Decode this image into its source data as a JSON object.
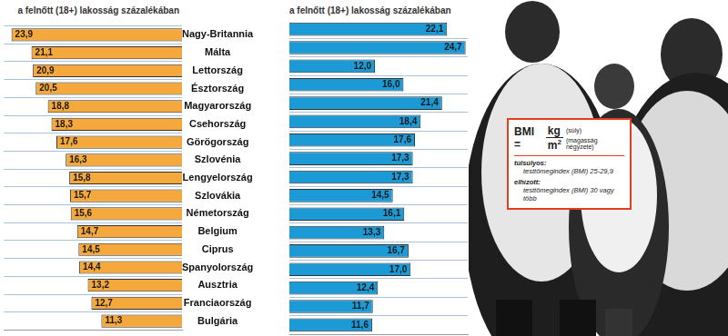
{
  "chart_data": [
    {
      "type": "bar",
      "orientation": "horizontal",
      "title": "a felnőtt (18+) lakosság százalékában",
      "categories": [
        "Nagy-Britannia",
        "Málta",
        "Lettország",
        "Észtország",
        "Magyarország",
        "Csehország",
        "Görögország",
        "Szlovénia",
        "Lengyelország",
        "Szlovákia",
        "Németország",
        "Belgium",
        "Ciprus",
        "Spanyolország",
        "Ausztria",
        "Franciaország",
        "Bulgária"
      ],
      "values": [
        23.9,
        21.1,
        20.9,
        20.5,
        18.8,
        18.3,
        17.6,
        16.3,
        15.8,
        15.7,
        15.6,
        14.7,
        14.5,
        14.4,
        13.2,
        12.7,
        11.3
      ],
      "value_labels": [
        "23,9",
        "21,1",
        "20,9",
        "20,5",
        "18,8",
        "18,3",
        "17,6",
        "16,3",
        "15,8",
        "15,7",
        "15,6",
        "14,7",
        "14,5",
        "14,4",
        "13,2",
        "12,7",
        "11,3"
      ],
      "color": "#f5a93c",
      "xlim": [
        0,
        25
      ],
      "grid": true,
      "data_labels": true,
      "tick_labels": "y"
    },
    {
      "type": "bar",
      "orientation": "horizontal",
      "title": "a felnőtt (18+) lakosság százalékában",
      "categories": [
        "Nagy-Britannia",
        "Málta",
        "Lettország",
        "Észtország",
        "Magyarország",
        "Csehország",
        "Görögország",
        "Szlovénia",
        "Lengyelország",
        "Szlovákia",
        "Németország",
        "Belgium",
        "Ciprus",
        "Spanyolország",
        "Ausztria",
        "Franciaország",
        "Bulgária"
      ],
      "values": [
        22.1,
        24.7,
        12.0,
        16.0,
        21.4,
        18.4,
        17.6,
        17.3,
        17.3,
        14.5,
        16.1,
        13.3,
        16.7,
        17.0,
        12.4,
        11.7,
        11.6
      ],
      "value_labels": [
        "22,1",
        "24,7",
        "12,0",
        "16,0",
        "21,4",
        "18,4",
        "17,6",
        "17,3",
        "17,3",
        "14,5",
        "16,1",
        "13,3",
        "16,7",
        "17,0",
        "12,4",
        "11,7",
        "11,6"
      ],
      "color": "#1c9ad6",
      "xlim": [
        0,
        25
      ],
      "grid": true,
      "data_labels": true,
      "tick_labels": false
    }
  ],
  "info_box": {
    "formula": {
      "lhs": "BMI =",
      "numerator": "kg",
      "denominator": "m",
      "exponent": "2",
      "numerator_note": "(súly)",
      "denominator_note": "(magasság négyzete)"
    },
    "items": [
      {
        "term": "túlsúlyos:",
        "definition": "testtömegindex (BMI) 25-29,9"
      },
      {
        "term": "elhízott:",
        "definition": "testtömegindex (BMI) 30 vagy több"
      }
    ]
  }
}
